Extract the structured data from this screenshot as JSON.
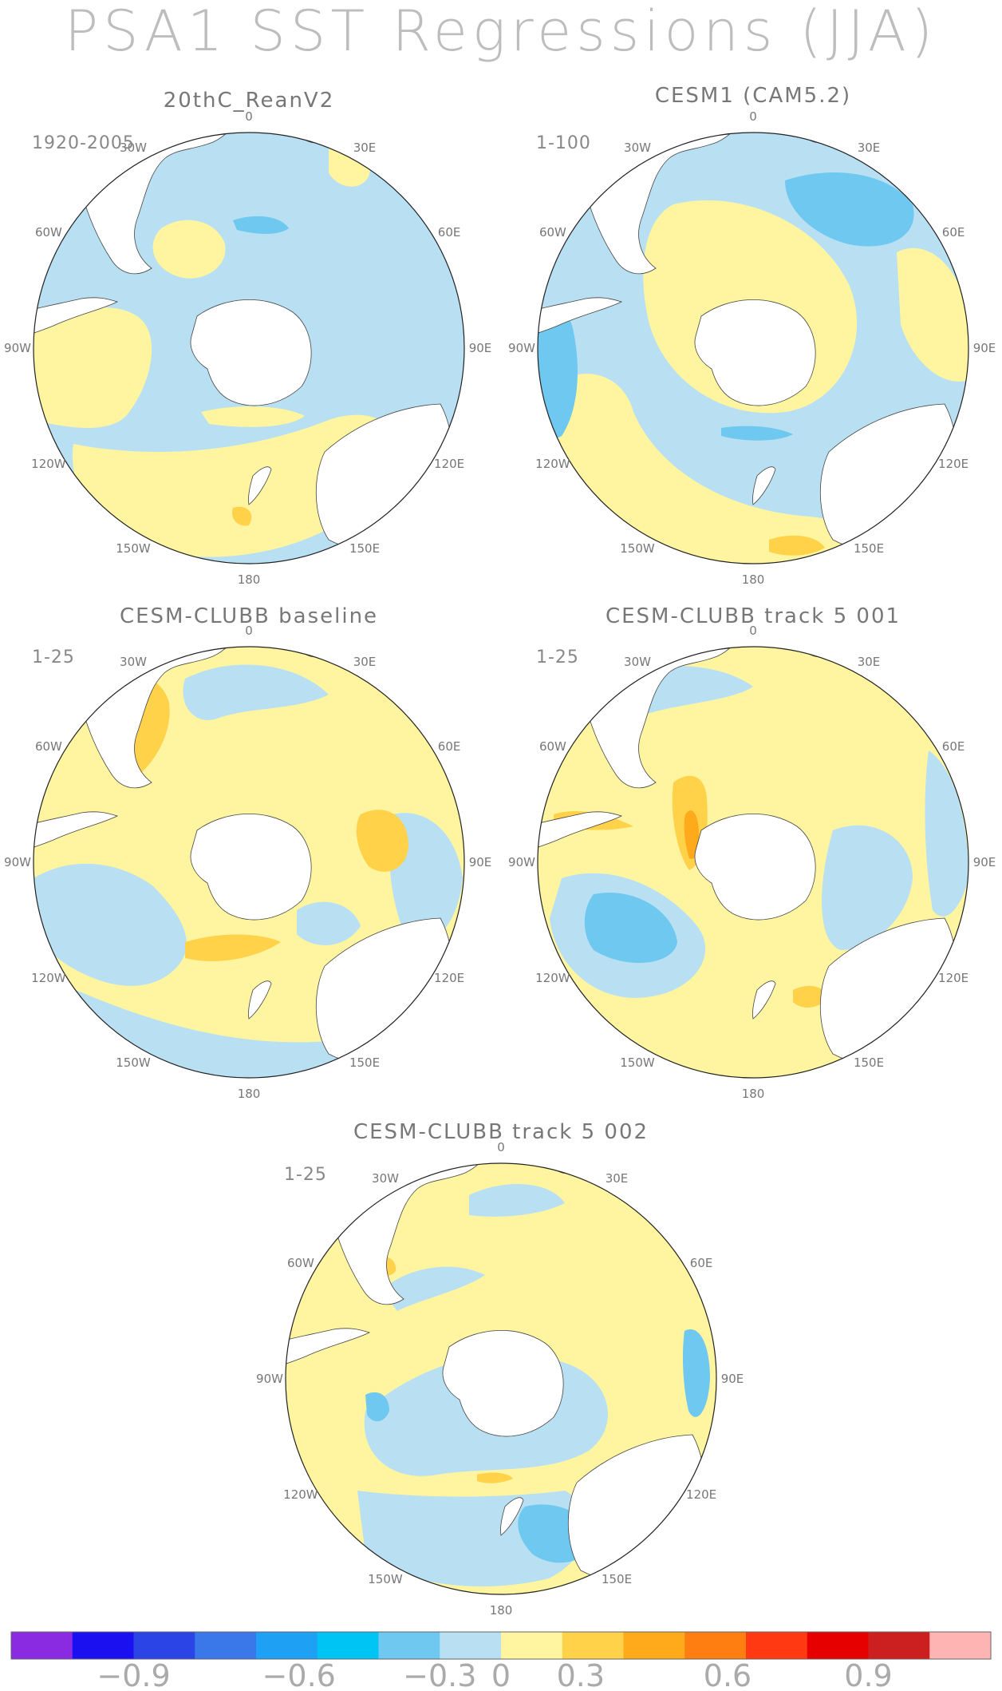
{
  "title": "PSA1 SST Regressions (JJA)",
  "longitude_labels": [
    "0",
    "30E",
    "60E",
    "90E",
    "120E",
    "150E",
    "180",
    "150W",
    "120W",
    "90W",
    "60W",
    "30W"
  ],
  "panels": [
    {
      "title": "20thC_ReanV2",
      "period": "1920-2005"
    },
    {
      "title": "CESM1 (CAM5.2)",
      "period": "1-100"
    },
    {
      "title": "CESM-CLUBB baseline",
      "period": "1-25"
    },
    {
      "title": "CESM-CLUBB track 5 001",
      "period": "1-25"
    },
    {
      "title": "CESM-CLUBB track 5 002",
      "period": "1-25"
    }
  ],
  "colorbar": {
    "colors": [
      "#8a2be2",
      "#1a10f0",
      "#2b44e6",
      "#3a78ea",
      "#1ea0f4",
      "#00c4f4",
      "#6ec8f0",
      "#b8e0f2",
      "#fff5a0",
      "#ffd24a",
      "#ffaa1a",
      "#ff7e12",
      "#ff3a12",
      "#e60000",
      "#cc2020",
      "#ffb4b4"
    ],
    "tick_labels": [
      "−0.9",
      "−0.6",
      "−0.3",
      "0",
      "0.3",
      "0.6",
      "0.9"
    ]
  },
  "fill_colors": {
    "ocean_neg_weak": "#b8e0f2",
    "ocean_pos_weak": "#fff5a0",
    "neg_moderate": "#6ec8f0",
    "pos_moderate": "#ffd24a",
    "pos_strong": "#ffaa1a",
    "land": "#ffffff"
  }
}
